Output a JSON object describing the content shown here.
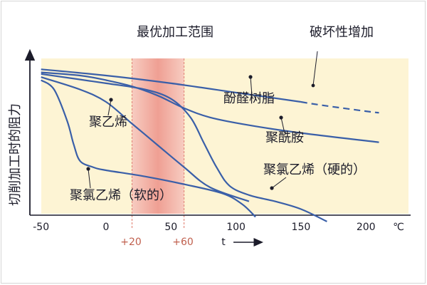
{
  "chart_data": {
    "type": "line",
    "ylabel": "切削加工时的阻力",
    "xlabel": "t",
    "unit": "℃",
    "xlim": [
      -50,
      215
    ],
    "ylim": [
      0,
      1
    ],
    "x_ticks": [
      -50,
      0,
      50,
      100,
      150,
      200
    ],
    "processing_band": {
      "label": "最优加工范围",
      "range": [
        20,
        60
      ],
      "range_labels": [
        "+20",
        "+60"
      ]
    },
    "damage_label": "破坏性增加",
    "series": [
      {
        "name": "酚醛树脂",
        "x": [
          -50,
          0,
          50,
          100,
          150,
          165,
          200,
          210
        ],
        "y": [
          0.93,
          0.89,
          0.84,
          0.78,
          0.72,
          0.7,
          0.66,
          0.65
        ],
        "dashed_from_x": 150
      },
      {
        "name": "聚酰胺",
        "x": [
          -50,
          -20,
          0,
          20,
          40,
          60,
          80,
          110,
          150,
          210
        ],
        "y": [
          0.91,
          0.89,
          0.86,
          0.82,
          0.76,
          0.68,
          0.62,
          0.57,
          0.52,
          0.46
        ]
      },
      {
        "name": "聚氯乙烯（硬的）",
        "x": [
          -50,
          0,
          30,
          50,
          65,
          75,
          85,
          95,
          110,
          130,
          150,
          170
        ],
        "y": [
          0.9,
          0.84,
          0.8,
          0.74,
          0.62,
          0.46,
          0.3,
          0.18,
          0.12,
          0.08,
          0.03,
          -0.05
        ]
      },
      {
        "name": "聚乙烯",
        "x": [
          -50,
          -20,
          0,
          20,
          40,
          60,
          80,
          110
        ],
        "y": [
          0.88,
          0.8,
          0.72,
          0.58,
          0.44,
          0.3,
          0.17,
          0.08
        ]
      },
      {
        "name": "聚氯乙烯（软的）",
        "x": [
          -50,
          -40,
          -30,
          -25,
          -20,
          -10,
          0,
          30,
          60,
          90,
          105,
          115
        ],
        "y": [
          0.86,
          0.8,
          0.6,
          0.45,
          0.34,
          0.3,
          0.28,
          0.24,
          0.19,
          0.13,
          0.06,
          -0.02
        ]
      }
    ],
    "colors": {
      "background": "#fdf4d4",
      "band": "#f3b7ac",
      "band_edge": "#e48c7e",
      "curve": "#3a5fa8",
      "text": "#1c1c2a",
      "range_text": "#c0604e"
    }
  }
}
